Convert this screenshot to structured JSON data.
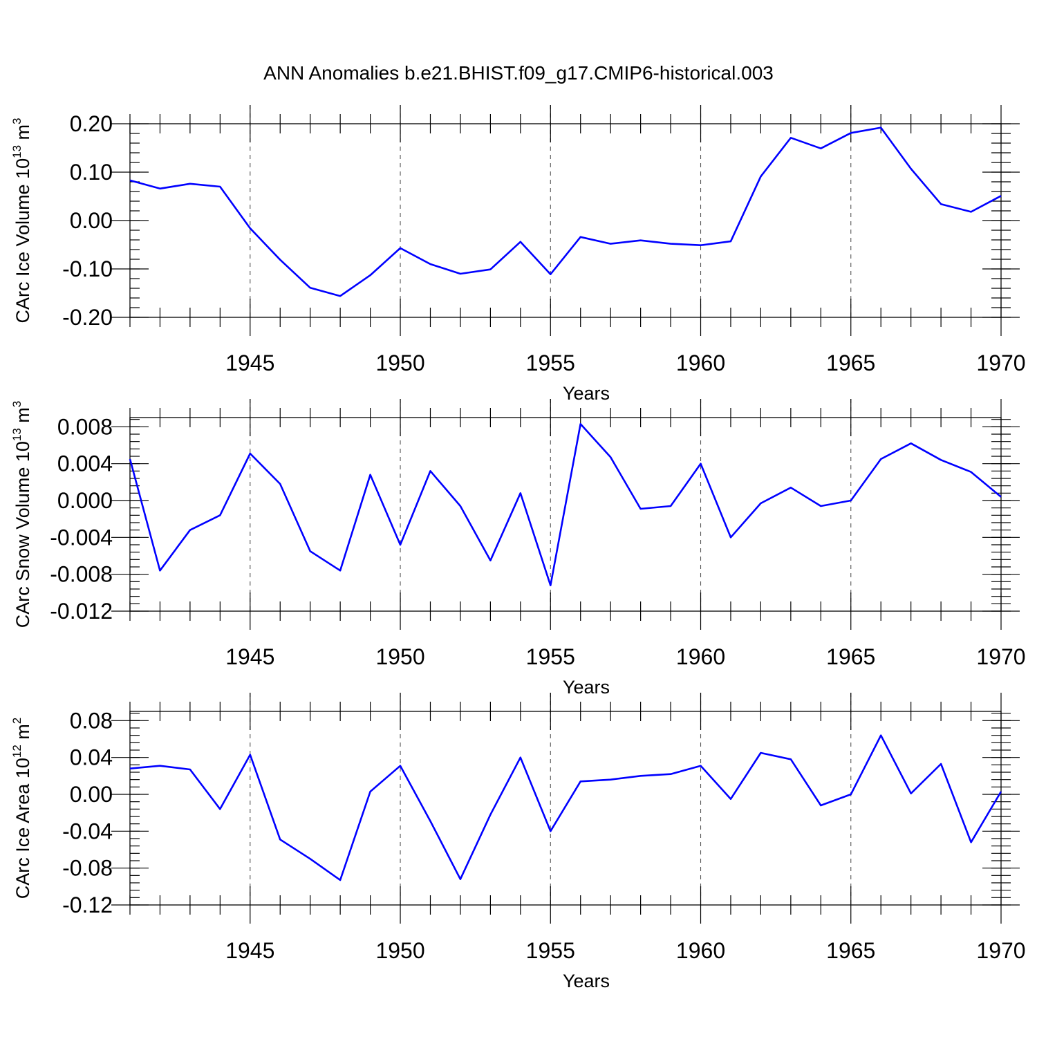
{
  "title": "ANN Anomalies b.e21.BHIST.f09_g17.CMIP6-historical.003",
  "line_color": "#0000ff",
  "chart_data": [
    {
      "type": "line",
      "xlabel": "Years",
      "ylabel": {
        "main": "CArc Ice Volume 10",
        "exp": "13",
        "unit_main": " m",
        "unit_exp": "3"
      },
      "xlim": [
        1941,
        1970
      ],
      "ylim": [
        -0.2,
        0.2
      ],
      "xticks": [
        1945,
        1950,
        1955,
        1960,
        1965,
        1970
      ],
      "yticks": [
        0.2,
        0.1,
        0.0,
        -0.1,
        -0.2
      ],
      "ytick_labels": [
        "0.20",
        "0.10",
        "0.00",
        "-0.10",
        "-0.20"
      ],
      "grid_x": [
        1945,
        1950,
        1955,
        1960,
        1965
      ],
      "x": [
        1941,
        1942,
        1943,
        1944,
        1945,
        1946,
        1947,
        1948,
        1949,
        1950,
        1951,
        1952,
        1953,
        1954,
        1955,
        1956,
        1957,
        1958,
        1959,
        1960,
        1961,
        1962,
        1963,
        1964,
        1965,
        1966,
        1967,
        1968,
        1969,
        1970
      ],
      "y": [
        0.083,
        0.066,
        0.076,
        0.07,
        -0.016,
        -0.081,
        -0.139,
        -0.156,
        -0.113,
        -0.057,
        -0.09,
        -0.11,
        -0.101,
        -0.044,
        -0.111,
        -0.034,
        -0.048,
        -0.041,
        -0.048,
        -0.051,
        -0.043,
        0.091,
        0.171,
        0.149,
        0.181,
        0.192,
        0.107,
        0.034,
        0.018,
        0.051
      ]
    },
    {
      "type": "line",
      "xlabel": "Years",
      "ylabel": {
        "main": "CArc Snow Volume 10",
        "exp": "13",
        "unit_main": " m",
        "unit_exp": "3"
      },
      "xlim": [
        1941,
        1970
      ],
      "ylim": [
        -0.012,
        0.009
      ],
      "xticks": [
        1945,
        1950,
        1955,
        1960,
        1965,
        1970
      ],
      "yticks": [
        0.008,
        0.004,
        0.0,
        -0.004,
        -0.008,
        -0.012
      ],
      "ytick_labels": [
        "0.008",
        "0.004",
        "0.000",
        "-0.004",
        "-0.008",
        "-0.012"
      ],
      "grid_x": [
        1945,
        1950,
        1955,
        1960,
        1965
      ],
      "x": [
        1941,
        1942,
        1943,
        1944,
        1945,
        1946,
        1947,
        1948,
        1949,
        1950,
        1951,
        1952,
        1953,
        1954,
        1955,
        1956,
        1957,
        1958,
        1959,
        1960,
        1961,
        1962,
        1963,
        1964,
        1965,
        1966,
        1967,
        1968,
        1969,
        1970
      ],
      "y": [
        0.0045,
        -0.0076,
        -0.0032,
        -0.0016,
        0.0051,
        0.0018,
        -0.0055,
        -0.0076,
        0.0028,
        -0.0048,
        0.0032,
        -0.0006,
        -0.0065,
        0.0008,
        -0.0092,
        0.0083,
        0.0047,
        -0.0009,
        -0.0006,
        0.004,
        -0.004,
        -0.0003,
        0.0014,
        -0.0006,
        0.0,
        0.0045,
        0.0062,
        0.0044,
        0.0031,
        0.0004
      ]
    },
    {
      "type": "line",
      "xlabel": "Years",
      "ylabel": {
        "main": "CArc Ice Area 10",
        "exp": "12",
        "unit_main": " m",
        "unit_exp": "2"
      },
      "xlim": [
        1941,
        1970
      ],
      "ylim": [
        -0.12,
        0.09
      ],
      "xticks": [
        1945,
        1950,
        1955,
        1960,
        1965,
        1970
      ],
      "yticks": [
        0.08,
        0.04,
        0.0,
        -0.04,
        -0.08,
        -0.12
      ],
      "ytick_labels": [
        "0.08",
        "0.04",
        "0.00",
        "-0.04",
        "-0.08",
        "-0.12"
      ],
      "grid_x": [
        1945,
        1950,
        1955,
        1960,
        1965
      ],
      "x": [
        1941,
        1942,
        1943,
        1944,
        1945,
        1946,
        1947,
        1948,
        1949,
        1950,
        1951,
        1952,
        1953,
        1954,
        1955,
        1956,
        1957,
        1958,
        1959,
        1960,
        1961,
        1962,
        1963,
        1964,
        1965,
        1966,
        1967,
        1968,
        1969,
        1970
      ],
      "y": [
        0.028,
        0.031,
        0.027,
        -0.016,
        0.043,
        -0.049,
        -0.07,
        -0.093,
        0.003,
        0.031,
        -0.029,
        -0.092,
        -0.022,
        0.04,
        -0.04,
        0.014,
        0.016,
        0.02,
        0.022,
        0.031,
        -0.005,
        0.045,
        0.038,
        -0.012,
        0.0,
        0.064,
        0.001,
        0.033,
        -0.052,
        0.003
      ]
    }
  ]
}
